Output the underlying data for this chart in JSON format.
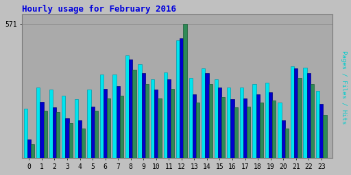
{
  "title": "Hourly usage for February 2016",
  "title_color": "#0000dd",
  "hours": [
    0,
    1,
    2,
    3,
    4,
    5,
    6,
    7,
    8,
    9,
    10,
    11,
    12,
    13,
    14,
    15,
    16,
    17,
    18,
    19,
    20,
    21,
    22,
    23
  ],
  "max_label": "571",
  "max_value": 571,
  "pages": [
    60,
    200,
    195,
    150,
    125,
    200,
    255,
    265,
    375,
    315,
    255,
    295,
    571,
    235,
    315,
    260,
    215,
    220,
    235,
    245,
    125,
    340,
    315,
    185
  ],
  "files": [
    80,
    240,
    215,
    170,
    160,
    220,
    295,
    305,
    420,
    360,
    290,
    335,
    510,
    270,
    360,
    300,
    250,
    255,
    270,
    280,
    160,
    380,
    360,
    230
  ],
  "hits": [
    210,
    300,
    290,
    265,
    250,
    290,
    355,
    355,
    435,
    400,
    335,
    365,
    500,
    340,
    380,
    335,
    300,
    300,
    315,
    320,
    235,
    390,
    385,
    285
  ],
  "pages_color": "#2e8b57",
  "files_color": "#0000cc",
  "hits_color": "#00e5ee",
  "pages_edge": "#1a5c35",
  "files_edge": "#00007a",
  "hits_edge": "#009aaa",
  "bg_color": "#c0c0c0",
  "plot_bg": "#aaaaaa",
  "bar_width": 0.28,
  "ylim": [
    0,
    610
  ],
  "ylabel_text": "Pages / Files / Hits",
  "ylabel_color": "#00cccc"
}
